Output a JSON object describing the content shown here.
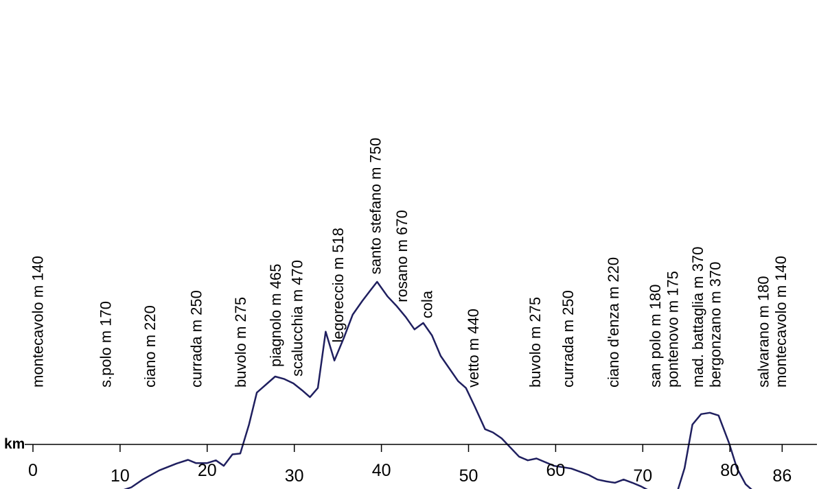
{
  "chart_data": {
    "type": "line",
    "title": "",
    "xlabel": "km",
    "ylabel": "",
    "xlim": [
      0,
      86
    ],
    "ylim": [
      0,
      750
    ],
    "grid": false,
    "line_color": "#1f1f5f",
    "x_ticks": [
      {
        "value": 0,
        "label": "0"
      },
      {
        "value": 10,
        "label": "10"
      },
      {
        "value": 20,
        "label": "20"
      },
      {
        "value": 30,
        "label": "30"
      },
      {
        "value": 40,
        "label": "40"
      },
      {
        "value": 50,
        "label": "50"
      },
      {
        "value": 60,
        "label": "60"
      },
      {
        "value": 70,
        "label": "70"
      },
      {
        "value": 80,
        "label": "80"
      },
      {
        "value": 86,
        "label": "86"
      }
    ],
    "series": [
      {
        "points": [
          [
            0,
            140
          ],
          [
            1.2,
            142
          ],
          [
            2.3,
            143
          ],
          [
            3.2,
            155
          ],
          [
            4.3,
            144
          ],
          [
            5.3,
            154
          ],
          [
            6.3,
            142
          ],
          [
            7.3,
            152
          ],
          [
            8.4,
            160
          ],
          [
            9.3,
            163
          ],
          [
            10.2,
            166
          ],
          [
            11.3,
            173
          ],
          [
            12.6,
            190
          ],
          [
            14.5,
            210
          ],
          [
            16.5,
            225
          ],
          [
            17.8,
            233
          ],
          [
            18.7,
            226
          ],
          [
            20,
            226
          ],
          [
            21,
            232
          ],
          [
            21.9,
            220
          ],
          [
            22.9,
            245
          ],
          [
            23.8,
            247
          ],
          [
            24.8,
            310
          ],
          [
            25.7,
            380
          ],
          [
            26.9,
            400
          ],
          [
            27.8,
            415
          ],
          [
            28.8,
            410
          ],
          [
            29.9,
            400
          ],
          [
            30.9,
            385
          ],
          [
            31.8,
            370
          ],
          [
            32.7,
            390
          ],
          [
            33.6,
            513
          ],
          [
            34.6,
            450
          ],
          [
            35.7,
            500
          ],
          [
            36.7,
            550
          ],
          [
            37.8,
            580
          ],
          [
            38.8,
            605
          ],
          [
            39.5,
            622
          ],
          [
            40.7,
            590
          ],
          [
            41.7,
            570
          ],
          [
            42.8,
            545
          ],
          [
            43.8,
            518
          ],
          [
            44.8,
            532
          ],
          [
            45.8,
            505
          ],
          [
            46.8,
            460
          ],
          [
            48.8,
            405
          ],
          [
            49.7,
            390
          ],
          [
            50.7,
            350
          ],
          [
            51.9,
            300
          ],
          [
            52.8,
            293
          ],
          [
            53.8,
            280
          ],
          [
            55.8,
            240
          ],
          [
            56.8,
            232
          ],
          [
            57.8,
            236
          ],
          [
            59.8,
            220
          ],
          [
            61.8,
            214
          ],
          [
            62.8,
            207
          ],
          [
            63.8,
            200
          ],
          [
            64.8,
            190
          ],
          [
            65.8,
            186
          ],
          [
            66.8,
            183
          ],
          [
            67.8,
            190
          ],
          [
            68.8,
            183
          ],
          [
            69.8,
            175
          ],
          [
            70.8,
            165
          ],
          [
            71.8,
            160
          ],
          [
            72.8,
            156
          ],
          [
            73.8,
            153
          ],
          [
            74.8,
            215
          ],
          [
            75.7,
            310
          ],
          [
            76.7,
            333
          ],
          [
            77.7,
            336
          ],
          [
            78.7,
            330
          ],
          [
            79.9,
            270
          ],
          [
            80.8,
            215
          ],
          [
            81.8,
            180
          ],
          [
            82.8,
            163
          ],
          [
            83.8,
            150
          ],
          [
            84.8,
            138
          ],
          [
            85.7,
            135
          ]
        ]
      }
    ],
    "annotations": [
      {
        "text": "montecavolo m 140",
        "x": 0.5
      },
      {
        "text": "s.polo m 170",
        "x": 8.3
      },
      {
        "text": "ciano m 220",
        "x": 13.4
      },
      {
        "text": "currada m 250",
        "x": 18.7
      },
      {
        "text": "buvolo m 275",
        "x": 23.8
      },
      {
        "text": "piagnolo m 465",
        "x": 27.8
      },
      {
        "text": "scalucchia m 470",
        "x": 30.3
      },
      {
        "text": "legoreccio m 518",
        "x": 35
      },
      {
        "text": "santo stefano m 750",
        "x": 39.3
      },
      {
        "text": "rosano m 670",
        "x": 42.3
      },
      {
        "text": "cola",
        "x": 45.2
      },
      {
        "text": "vetto m 440",
        "x": 50.5
      },
      {
        "text": "buvolo m 275",
        "x": 57.6
      },
      {
        "text": "currada m 250",
        "x": 61.4
      },
      {
        "text": "ciano d'enza m 220",
        "x": 66.6
      },
      {
        "text": "san polo m 180",
        "x": 71.4
      },
      {
        "text": "pontenovo m 175",
        "x": 73.4
      },
      {
        "text": "mad. battaglia m 370",
        "x": 76.3
      },
      {
        "text": "bergonzano m 370",
        "x": 78.3
      },
      {
        "text": "salvarano m 180",
        "x": 83.8
      },
      {
        "text": "montecavolo m 140",
        "x": 85.8
      }
    ]
  }
}
